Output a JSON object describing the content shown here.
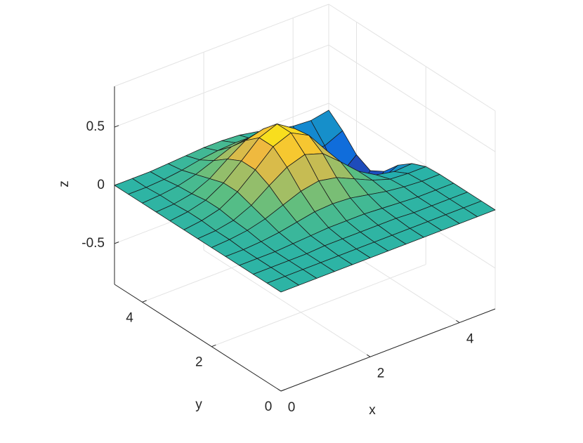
{
  "chart_data": {
    "type": "surface",
    "xlabel": "x",
    "ylabel": "y",
    "zlabel": "z",
    "colormap": "parula",
    "grid": true,
    "xlim": [
      0,
      4.8
    ],
    "ylim": [
      0,
      4.8
    ],
    "zlim": [
      -0.85,
      0.85
    ],
    "xticks": [
      0,
      2,
      4
    ],
    "yticks": [
      0,
      2,
      4
    ],
    "zticks": [
      -0.5,
      0,
      0.5
    ],
    "x": [
      0,
      0.4,
      0.8,
      1.2,
      1.6,
      2.0,
      2.4,
      2.8,
      3.2,
      3.6,
      4.0,
      4.4,
      4.8
    ],
    "y": [
      0,
      0.4,
      0.8,
      1.2,
      1.6,
      2.0,
      2.4,
      2.8,
      3.2,
      3.6,
      4.0,
      4.4,
      4.8
    ],
    "z": [
      [
        0,
        0,
        0,
        0,
        0,
        0,
        0,
        0,
        0,
        0,
        0,
        0,
        0
      ],
      [
        0,
        0,
        0,
        0,
        0,
        0,
        0,
        0,
        0,
        0,
        0,
        0,
        0
      ],
      [
        0,
        0,
        0,
        0,
        0.01,
        0.01,
        0.01,
        0.01,
        0.01,
        0,
        0,
        0,
        0
      ],
      [
        0,
        0,
        0,
        0.01,
        0.02,
        0.03,
        0.03,
        0.03,
        0.02,
        0.01,
        0,
        0,
        0
      ],
      [
        0,
        0,
        0.01,
        0.03,
        0.06,
        0.09,
        0.1,
        0.09,
        0.06,
        0.03,
        0.01,
        0,
        0
      ],
      [
        0,
        0.01,
        0.03,
        0.07,
        0.13,
        0.19,
        0.22,
        0.19,
        0.12,
        0.05,
        0,
        -0.01,
        -0.01
      ],
      [
        0,
        0.01,
        0.04,
        0.11,
        0.22,
        0.32,
        0.37,
        0.32,
        0.19,
        0.05,
        -0.04,
        -0.07,
        -0.06
      ],
      [
        0,
        0.02,
        0.06,
        0.15,
        0.28,
        0.42,
        0.48,
        0.4,
        0.21,
        -0.01,
        -0.18,
        -0.22,
        -0.15
      ],
      [
        0,
        0.02,
        0.06,
        0.15,
        0.28,
        0.42,
        0.48,
        0.38,
        0.15,
        -0.14,
        -0.37,
        -0.41,
        -0.28
      ],
      [
        0,
        0.01,
        0.04,
        0.11,
        0.22,
        0.32,
        0.36,
        0.28,
        0.06,
        -0.24,
        -0.48,
        -0.51,
        -0.35
      ],
      [
        0,
        0.01,
        0.03,
        0.07,
        0.13,
        0.19,
        0.21,
        0.15,
        0,
        -0.22,
        -0.4,
        -0.42,
        -0.29
      ],
      [
        0,
        0,
        0.01,
        0.03,
        0.06,
        0.08,
        0.09,
        0.06,
        -0.01,
        -0.13,
        -0.22,
        -0.23,
        -0.16
      ],
      [
        0,
        0,
        0,
        0.01,
        0.02,
        0.03,
        0.03,
        0.02,
        -0.01,
        -0.05,
        -0.08,
        -0.09,
        -0.06
      ]
    ]
  }
}
